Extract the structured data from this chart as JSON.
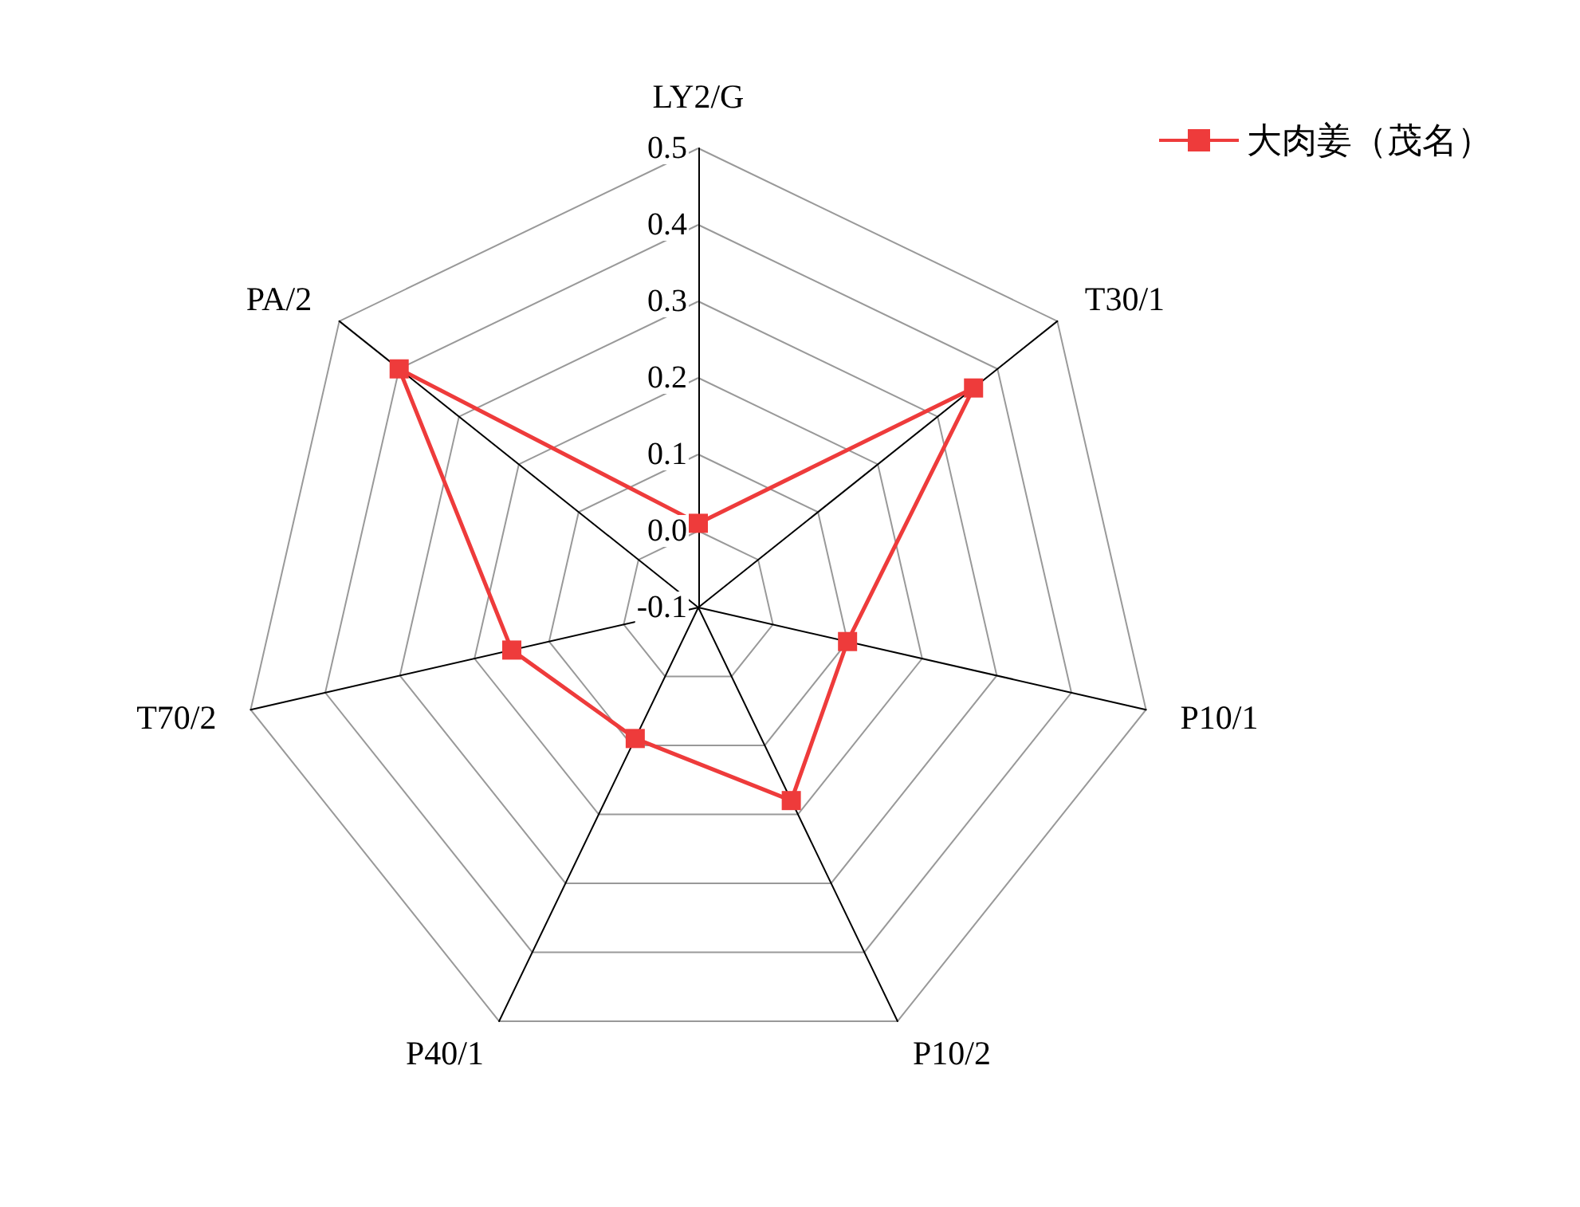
{
  "chart_data": {
    "type": "radar",
    "categories": [
      "LY2/G",
      "T30/1",
      "P10/1",
      "P10/2",
      "P40/1",
      "T70/2",
      "PA/2"
    ],
    "series": [
      {
        "name": "大肉姜（茂名）",
        "color": "#ee3b3b",
        "values": [
          0.01,
          0.36,
          0.1,
          0.18,
          0.09,
          0.15,
          0.4
        ]
      }
    ],
    "ylim": [
      -0.1,
      0.5
    ],
    "yticks": [
      "-0.1",
      "0.0",
      0.1,
      0.2,
      0.3,
      0.4,
      0.5
    ],
    "legend": "top right",
    "marker": "square",
    "line_style": "solid",
    "grid": true
  }
}
